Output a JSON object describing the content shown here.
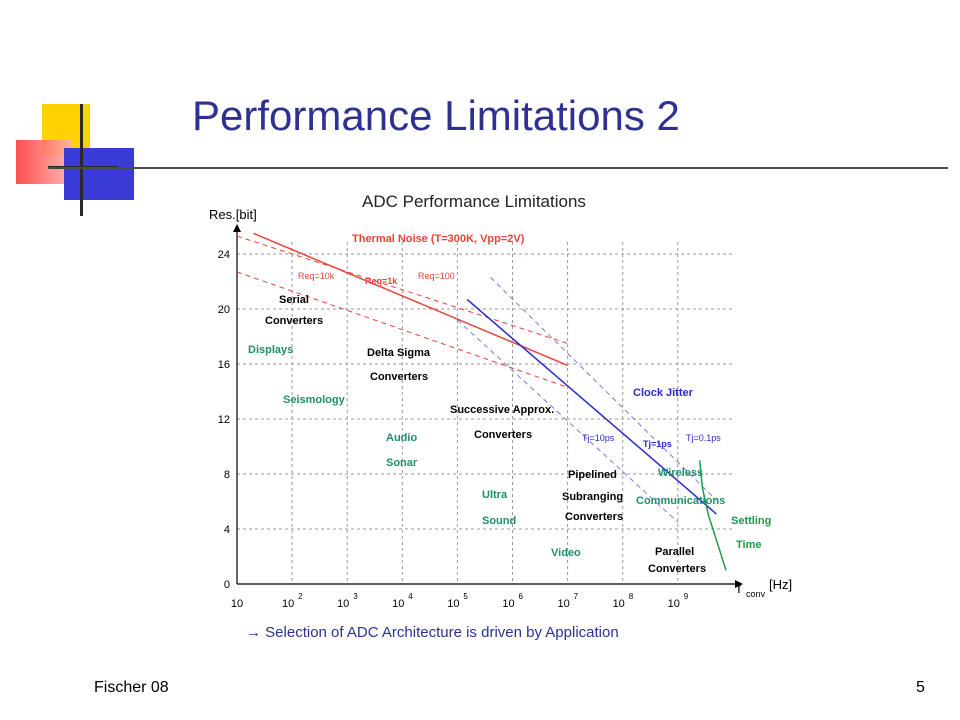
{
  "slide": {
    "title": "Performance Limitations 2",
    "caption": "→ Selection of ADC Architecture is driven by Application",
    "footer_left": "Fischer 08",
    "page_number": "5"
  },
  "colors": {
    "title": "#2e3192",
    "thermal": "#e8443a",
    "jitter": "#2a2ad0",
    "jitter_dash": "#7a7ae8",
    "settling": "#1f9a4a",
    "application": "#1f8f6a",
    "architecture": "#000000",
    "grid": "#9a9a9a"
  },
  "chart_data": {
    "type": "line",
    "title": "ADC Performance Limitations",
    "ylabel": "Res.[bit]",
    "xlabel_main": "f",
    "xlabel_sub": "conv",
    "xlabel_unit": "[Hz]",
    "x_scale": "log",
    "xlim": [
      10,
      10000000000
    ],
    "ylim": [
      0,
      26
    ],
    "grid": true,
    "x_ticks": [
      {
        "value": 10,
        "base": "10",
        "exp": ""
      },
      {
        "value": 100,
        "base": "10",
        "exp": "2"
      },
      {
        "value": 1000,
        "base": "10",
        "exp": "3"
      },
      {
        "value": 10000,
        "base": "10",
        "exp": "4"
      },
      {
        "value": 100000,
        "base": "10",
        "exp": "5"
      },
      {
        "value": 1000000,
        "base": "10",
        "exp": "6"
      },
      {
        "value": 10000000,
        "base": "10",
        "exp": "7"
      },
      {
        "value": 100000000,
        "base": "10",
        "exp": "8"
      },
      {
        "value": 1000000000,
        "base": "10",
        "exp": "9"
      }
    ],
    "y_ticks": [
      0,
      4,
      8,
      12,
      16,
      20,
      24
    ],
    "series": [
      {
        "name": "Req=10k",
        "group": "thermal",
        "style": "dashed",
        "x": [
          10,
          10000000
        ],
        "y": [
          25.3,
          17.5
        ]
      },
      {
        "name": "Req=1k",
        "group": "thermal",
        "style": "solid",
        "x": [
          20,
          10000000
        ],
        "y": [
          25.5,
          15.9
        ]
      },
      {
        "name": "Req=100",
        "group": "thermal",
        "style": "dashed",
        "x": [
          10,
          10000000
        ],
        "y": [
          22.7,
          14.3
        ]
      },
      {
        "name": "Tj=10ps",
        "group": "jitter",
        "style": "dashed",
        "x": [
          100000,
          1000000000
        ],
        "y": [
          19.2,
          4.5
        ]
      },
      {
        "name": "Tj=1ps",
        "group": "jitter",
        "style": "solid",
        "x": [
          150000,
          5000000000
        ],
        "y": [
          20.7,
          5.1
        ]
      },
      {
        "name": "Tj=0.1ps",
        "group": "jitter",
        "style": "dashed",
        "x": [
          400000,
          5000000000
        ],
        "y": [
          22.3,
          6.1
        ]
      },
      {
        "name": "Settling Time",
        "group": "settling",
        "style": "solid",
        "x": [
          2500000000,
          2800000000,
          3600000000,
          5200000000,
          7500000000
        ],
        "y": [
          9.0,
          7.0,
          5.0,
          3.0,
          1.0
        ]
      }
    ],
    "annotations": {
      "thermal_title": "Thermal Noise (T=300K, Vpp=2V)",
      "clock_jitter": "Clock Jitter",
      "settling_1": "Settling",
      "settling_2": "Time",
      "architectures": [
        {
          "line1": "Serial",
          "line2": "Converters"
        },
        {
          "line1": "Delta Sigma",
          "line2": "Converters"
        },
        {
          "line1": "Successive Approx.",
          "line2": "Converters"
        },
        {
          "line1": "Pipelined",
          "line2": "Subranging",
          "line3": "Converters"
        },
        {
          "line1": "Parallel",
          "line2": "Converters"
        }
      ],
      "applications": [
        {
          "line1": "Displays"
        },
        {
          "line1": "Seismology"
        },
        {
          "line1": "Audio",
          "line2": "Sonar"
        },
        {
          "line1": "Ultra",
          "line2": "Sound"
        },
        {
          "line1": "Video"
        },
        {
          "line1": "Wireless",
          "line2": "Communications"
        }
      ]
    }
  }
}
